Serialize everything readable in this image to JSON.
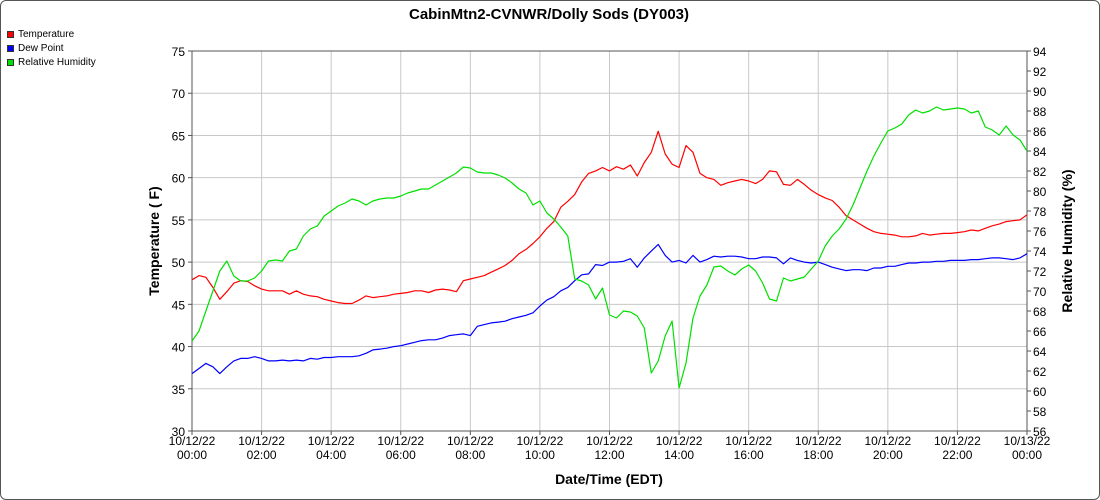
{
  "chart_data": {
    "type": "line",
    "title": "CabinMtn2-CVNWR/Dolly Sods (DY003)",
    "xlabel": "Date/Time (EDT)",
    "ylabel_left": "Temperature ( F)",
    "ylabel_right": "Relative Humidity (%)",
    "y_left_range": [
      30,
      75
    ],
    "y_right_range": [
      56,
      94
    ],
    "x_range_hours": [
      0,
      24
    ],
    "grid": true,
    "legend_position": "top-left outside",
    "x_ticks": [
      {
        "h": 0,
        "date": "10/12/22",
        "time": "00:00"
      },
      {
        "h": 2,
        "date": "10/12/22",
        "time": "02:00"
      },
      {
        "h": 4,
        "date": "10/12/22",
        "time": "04:00"
      },
      {
        "h": 6,
        "date": "10/12/22",
        "time": "06:00"
      },
      {
        "h": 8,
        "date": "10/12/22",
        "time": "08:00"
      },
      {
        "h": 10,
        "date": "10/12/22",
        "time": "10:00"
      },
      {
        "h": 12,
        "date": "10/12/22",
        "time": "12:00"
      },
      {
        "h": 14,
        "date": "10/12/22",
        "time": "14:00"
      },
      {
        "h": 16,
        "date": "10/12/22",
        "time": "16:00"
      },
      {
        "h": 18,
        "date": "10/12/22",
        "time": "18:00"
      },
      {
        "h": 20,
        "date": "10/12/22",
        "time": "20:00"
      },
      {
        "h": 22,
        "date": "10/12/22",
        "time": "22:00"
      },
      {
        "h": 24,
        "date": "10/13/22",
        "time": "00:00"
      }
    ],
    "y_left_ticks": [
      30,
      35,
      40,
      45,
      50,
      55,
      60,
      65,
      70,
      75
    ],
    "y_right_ticks": [
      56,
      58,
      60,
      62,
      64,
      66,
      68,
      70,
      72,
      74,
      76,
      78,
      80,
      82,
      84,
      86,
      88,
      90,
      92,
      94
    ],
    "series": [
      {
        "name": "Temperature",
        "color": "#ff0000",
        "axis": "left",
        "x": [
          0,
          0.2,
          0.4,
          0.6,
          0.8,
          1.0,
          1.2,
          1.4,
          1.6,
          1.8,
          2.0,
          2.2,
          2.4,
          2.6,
          2.8,
          3.0,
          3.2,
          3.4,
          3.6,
          3.8,
          4.0,
          4.2,
          4.4,
          4.6,
          4.8,
          5.0,
          5.2,
          5.4,
          5.6,
          5.8,
          6.0,
          6.2,
          6.4,
          6.6,
          6.8,
          7.0,
          7.2,
          7.4,
          7.6,
          7.8,
          8.0,
          8.2,
          8.4,
          8.6,
          8.8,
          9.0,
          9.2,
          9.4,
          9.6,
          9.8,
          10.0,
          10.2,
          10.4,
          10.6,
          10.8,
          11.0,
          11.2,
          11.4,
          11.6,
          11.8,
          12.0,
          12.2,
          12.4,
          12.6,
          12.8,
          13.0,
          13.2,
          13.4,
          13.6,
          13.8,
          14.0,
          14.2,
          14.4,
          14.6,
          14.8,
          15.0,
          15.2,
          15.4,
          15.6,
          15.8,
          16.0,
          16.2,
          16.4,
          16.6,
          16.8,
          17.0,
          17.2,
          17.4,
          17.6,
          17.8,
          18.0,
          18.2,
          18.4,
          18.6,
          18.8,
          19.0,
          19.2,
          19.4,
          19.6,
          19.8,
          20.0,
          20.2,
          20.4,
          20.6,
          20.8,
          21.0,
          21.2,
          21.4,
          21.6,
          21.8,
          22.0,
          22.2,
          22.4,
          22.6,
          22.8,
          23.0,
          23.2,
          23.4,
          23.6,
          23.8,
          24.0
        ],
        "values": [
          47.9,
          48.4,
          48.2,
          47.0,
          45.6,
          46.5,
          47.5,
          47.8,
          47.7,
          47.2,
          46.8,
          46.6,
          46.6,
          46.6,
          46.2,
          46.6,
          46.2,
          46.0,
          45.9,
          45.6,
          45.4,
          45.2,
          45.1,
          45.1,
          45.5,
          46.0,
          45.8,
          45.9,
          46.0,
          46.2,
          46.3,
          46.4,
          46.6,
          46.6,
          46.4,
          46.7,
          46.8,
          46.7,
          46.5,
          47.8,
          48.0,
          48.2,
          48.4,
          48.8,
          49.2,
          49.6,
          50.2,
          51.0,
          51.5,
          52.2,
          53.0,
          54.0,
          54.8,
          56.5,
          57.2,
          58.0,
          59.5,
          60.5,
          60.8,
          61.2,
          60.8,
          61.3,
          61.0,
          61.5,
          60.2,
          61.8,
          63.0,
          65.5,
          62.8,
          61.6,
          61.2,
          63.8,
          63.0,
          60.5,
          60.0,
          59.8,
          59.1,
          59.4,
          59.6,
          59.8,
          59.6,
          59.3,
          59.8,
          60.8,
          60.7,
          59.2,
          59.1,
          59.8,
          59.2,
          58.5,
          58.0,
          57.6,
          57.3,
          56.5,
          55.5,
          55.0,
          54.5,
          54.0,
          53.6,
          53.4,
          53.3,
          53.2,
          53.0,
          53.0,
          53.1,
          53.4,
          53.2,
          53.3,
          53.4,
          53.4,
          53.5,
          53.6,
          53.8,
          53.7,
          54.0,
          54.3,
          54.5,
          54.8,
          54.9,
          55.0,
          55.6
        ]
      },
      {
        "name": "Dew Point",
        "color": "#0000ff",
        "axis": "left",
        "x": [
          0,
          0.2,
          0.4,
          0.6,
          0.8,
          1.0,
          1.2,
          1.4,
          1.6,
          1.8,
          2.0,
          2.2,
          2.4,
          2.6,
          2.8,
          3.0,
          3.2,
          3.4,
          3.6,
          3.8,
          4.0,
          4.2,
          4.4,
          4.6,
          4.8,
          5.0,
          5.2,
          5.4,
          5.6,
          5.8,
          6.0,
          6.2,
          6.4,
          6.6,
          6.8,
          7.0,
          7.2,
          7.4,
          7.6,
          7.8,
          8.0,
          8.2,
          8.4,
          8.6,
          8.8,
          9.0,
          9.2,
          9.4,
          9.6,
          9.8,
          10.0,
          10.2,
          10.4,
          10.6,
          10.8,
          11.0,
          11.2,
          11.4,
          11.6,
          11.8,
          12.0,
          12.2,
          12.4,
          12.6,
          12.8,
          13.0,
          13.2,
          13.4,
          13.6,
          13.8,
          14.0,
          14.2,
          14.4,
          14.6,
          14.8,
          15.0,
          15.2,
          15.4,
          15.6,
          15.8,
          16.0,
          16.2,
          16.4,
          16.6,
          16.8,
          17.0,
          17.2,
          17.4,
          17.6,
          17.8,
          18.0,
          18.2,
          18.4,
          18.6,
          18.8,
          19.0,
          19.2,
          19.4,
          19.6,
          19.8,
          20.0,
          20.2,
          20.4,
          20.6,
          20.8,
          21.0,
          21.2,
          21.4,
          21.6,
          21.8,
          22.0,
          22.2,
          22.4,
          22.6,
          22.8,
          23.0,
          23.2,
          23.4,
          23.6,
          23.8,
          24.0
        ],
        "values": [
          36.8,
          37.4,
          38.0,
          37.6,
          36.8,
          37.6,
          38.3,
          38.6,
          38.6,
          38.8,
          38.6,
          38.3,
          38.3,
          38.4,
          38.3,
          38.4,
          38.3,
          38.6,
          38.5,
          38.7,
          38.7,
          38.8,
          38.8,
          38.8,
          38.9,
          39.2,
          39.6,
          39.7,
          39.8,
          40.0,
          40.1,
          40.3,
          40.5,
          40.7,
          40.8,
          40.8,
          41.0,
          41.3,
          41.4,
          41.5,
          41.3,
          42.4,
          42.6,
          42.8,
          42.9,
          43.0,
          43.3,
          43.5,
          43.7,
          44.0,
          44.8,
          45.5,
          45.9,
          46.6,
          47.0,
          47.8,
          48.5,
          48.6,
          49.7,
          49.6,
          50.0,
          50.0,
          50.1,
          50.4,
          49.4,
          50.5,
          51.3,
          52.1,
          50.8,
          50.0,
          50.2,
          49.9,
          50.8,
          50.0,
          50.3,
          50.7,
          50.6,
          50.7,
          50.7,
          50.6,
          50.4,
          50.4,
          50.6,
          50.6,
          50.5,
          49.8,
          50.5,
          50.2,
          50.0,
          49.9,
          50.0,
          49.7,
          49.4,
          49.2,
          49.0,
          49.1,
          49.1,
          49.0,
          49.3,
          49.3,
          49.5,
          49.5,
          49.7,
          49.9,
          49.9,
          50.0,
          50.0,
          50.1,
          50.1,
          50.2,
          50.2,
          50.2,
          50.3,
          50.3,
          50.4,
          50.5,
          50.5,
          50.4,
          50.3,
          50.5,
          51.0
        ]
      },
      {
        "name": "Relative Humidity",
        "color": "#00e000",
        "axis": "right",
        "x": [
          0,
          0.2,
          0.4,
          0.6,
          0.8,
          1.0,
          1.2,
          1.4,
          1.6,
          1.8,
          2.0,
          2.2,
          2.4,
          2.6,
          2.8,
          3.0,
          3.2,
          3.4,
          3.6,
          3.8,
          4.0,
          4.2,
          4.4,
          4.6,
          4.8,
          5.0,
          5.2,
          5.4,
          5.6,
          5.8,
          6.0,
          6.2,
          6.4,
          6.6,
          6.8,
          7.0,
          7.2,
          7.4,
          7.6,
          7.8,
          8.0,
          8.2,
          8.4,
          8.6,
          8.8,
          9.0,
          9.2,
          9.4,
          9.6,
          9.8,
          10.0,
          10.2,
          10.4,
          10.6,
          10.8,
          11.0,
          11.2,
          11.4,
          11.6,
          11.8,
          12.0,
          12.2,
          12.4,
          12.6,
          12.8,
          13.0,
          13.2,
          13.4,
          13.6,
          13.8,
          14.0,
          14.2,
          14.4,
          14.6,
          14.8,
          15.0,
          15.2,
          15.4,
          15.6,
          15.8,
          16.0,
          16.2,
          16.4,
          16.6,
          16.8,
          17.0,
          17.2,
          17.4,
          17.6,
          17.8,
          18.0,
          18.2,
          18.4,
          18.6,
          18.8,
          19.0,
          19.2,
          19.4,
          19.6,
          19.8,
          20.0,
          20.2,
          20.4,
          20.6,
          20.8,
          21.0,
          21.2,
          21.4,
          21.6,
          21.8,
          22.0,
          22.2,
          22.4,
          22.6,
          22.8,
          23.0,
          23.2,
          23.4,
          23.6,
          23.8,
          24.0
        ],
        "values": [
          65.0,
          66.0,
          68.0,
          70.0,
          72.0,
          73.0,
          71.5,
          71.0,
          71.0,
          71.3,
          72.0,
          73.0,
          73.1,
          73.0,
          74.0,
          74.2,
          75.5,
          76.2,
          76.5,
          77.5,
          78.0,
          78.5,
          78.8,
          79.2,
          79.0,
          78.6,
          79.0,
          79.2,
          79.3,
          79.3,
          79.5,
          79.8,
          80.0,
          80.2,
          80.2,
          80.6,
          81.0,
          81.4,
          81.8,
          82.4,
          82.3,
          81.9,
          81.8,
          81.8,
          81.6,
          81.3,
          80.8,
          80.2,
          79.8,
          78.6,
          79.0,
          77.8,
          77.2,
          76.4,
          75.5,
          71.2,
          71.0,
          70.6,
          69.2,
          70.3,
          67.6,
          67.3,
          68.0,
          67.9,
          67.5,
          66.3,
          61.8,
          63.0,
          65.5,
          67.0,
          60.3,
          62.8,
          67.3,
          69.5,
          70.6,
          72.4,
          72.5,
          72.0,
          71.6,
          72.2,
          72.6,
          72.0,
          70.8,
          69.2,
          69.0,
          71.3,
          71.0,
          71.2,
          71.4,
          72.2,
          73.0,
          74.5,
          75.5,
          76.2,
          77.2,
          78.6,
          80.3,
          82.0,
          83.5,
          84.8,
          86.0,
          86.3,
          86.7,
          87.6,
          88.1,
          87.8,
          88.0,
          88.4,
          88.1,
          88.2,
          88.3,
          88.2,
          87.8,
          88.0,
          86.4,
          86.1,
          85.6,
          86.5,
          85.6,
          85.1,
          84.0
        ]
      }
    ]
  }
}
